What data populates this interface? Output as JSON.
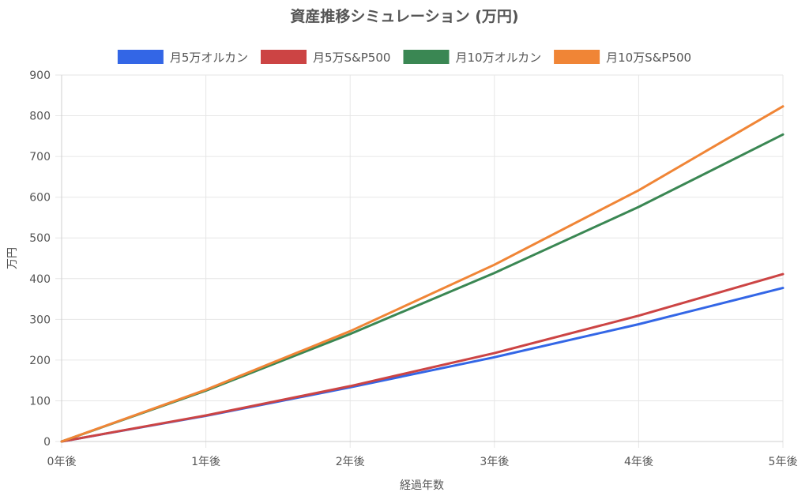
{
  "chart_data": {
    "type": "line",
    "title": "資産推移シミュレーション (万円)",
    "xlabel": "経過年数",
    "ylabel": "万円",
    "categories": [
      "0年後",
      "1年後",
      "2年後",
      "3年後",
      "4年後",
      "5年後"
    ],
    "ylim": [
      0,
      900
    ],
    "yticks": [
      0,
      100,
      200,
      300,
      400,
      500,
      600,
      700,
      800,
      900
    ],
    "grid": true,
    "legend_position": "top",
    "series": [
      {
        "name": "月5万オルカン",
        "color": "#3366e6",
        "values": [
          0,
          63,
          133,
          207,
          288,
          377
        ]
      },
      {
        "name": "月5万S&P500",
        "color": "#cc4444",
        "values": [
          0,
          64,
          136,
          217,
          309,
          411
        ]
      },
      {
        "name": "月10万オルカン",
        "color": "#3a8753",
        "values": [
          0,
          125,
          264,
          414,
          576,
          754
        ]
      },
      {
        "name": "月10万S&P500",
        "color": "#f08536",
        "values": [
          0,
          127,
          271,
          434,
          617,
          823
        ]
      }
    ]
  }
}
